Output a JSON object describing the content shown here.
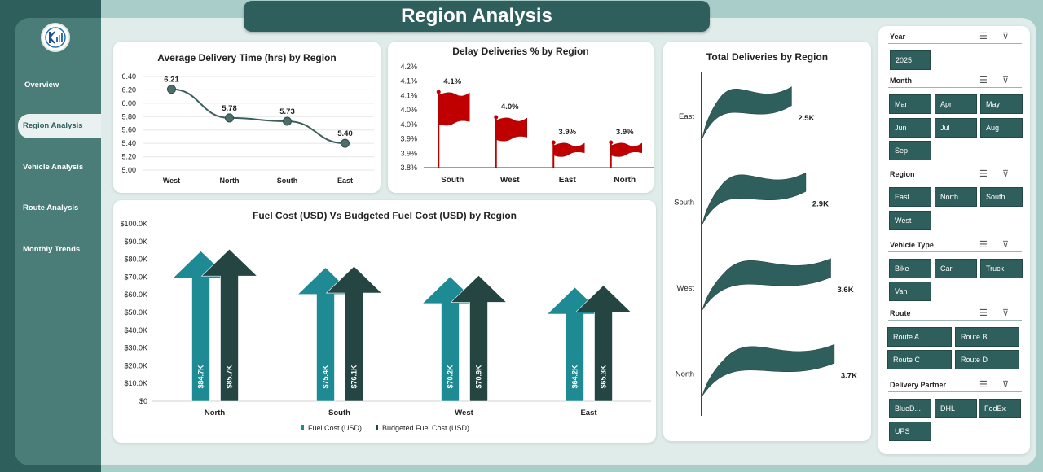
{
  "header": {
    "title": "Region Analysis"
  },
  "sidebar": {
    "items": [
      {
        "label": "Overview"
      },
      {
        "label": "Region Analysis"
      },
      {
        "label": "Vehicle Analysis"
      },
      {
        "label": "Route Analysis"
      },
      {
        "label": "Monthly Trends"
      }
    ],
    "active": "Region Analysis",
    "logo": "logo-icon"
  },
  "colors": {
    "teal": "#2f5f5c",
    "cyan": "#1e8a93",
    "red": "#c00000",
    "accent_bg": "#dfecea"
  },
  "charts": {
    "avg_delivery": {
      "title": "Average Delivery Time (hrs) by Region",
      "y_ticks": [
        "6.40",
        "6.20",
        "6.00",
        "5.80",
        "5.60",
        "5.40",
        "5.20",
        "5.00"
      ]
    },
    "delay": {
      "title": "Delay Deliveries % by Region",
      "y_ticks": [
        "4.2%",
        "4.1%",
        "4.1%",
        "4.0%",
        "4.0%",
        "3.9%",
        "3.9%",
        "3.8%"
      ]
    },
    "fuel": {
      "title": "Fuel Cost (USD) Vs Budgeted Fuel Cost (USD) by Region",
      "y_ticks": [
        "$100.0K",
        "$90.0K",
        "$80.0K",
        "$70.0K",
        "$60.0K",
        "$50.0K",
        "$40.0K",
        "$30.0K",
        "$20.0K",
        "$10.0K",
        "$0"
      ],
      "legend": [
        "Fuel Cost (USD)",
        "Budgeted Fuel Cost (USD)"
      ]
    },
    "total": {
      "title": "Total Deliveries by Region"
    }
  },
  "chart_data": [
    {
      "type": "line",
      "title": "Average Delivery Time (hrs) by Region",
      "categories": [
        "West",
        "North",
        "South",
        "East"
      ],
      "values": [
        6.21,
        5.78,
        5.73,
        5.4
      ],
      "labels": [
        "6.21",
        "5.78",
        "5.73",
        "5.40"
      ],
      "ylim": [
        5.0,
        6.4
      ]
    },
    {
      "type": "bar",
      "title": "Delay Deliveries % by Region",
      "categories": [
        "South",
        "West",
        "East",
        "North"
      ],
      "values": [
        4.1,
        4.0,
        3.9,
        3.9
      ],
      "labels": [
        "4.1%",
        "4.0%",
        "3.9%",
        "3.9%"
      ],
      "ylim": [
        3.8,
        4.2
      ]
    },
    {
      "type": "bar",
      "title": "Fuel Cost (USD) Vs Budgeted Fuel Cost (USD) by Region",
      "categories": [
        "North",
        "South",
        "West",
        "East"
      ],
      "series": [
        {
          "name": "Fuel Cost (USD)",
          "values": [
            84.7,
            75.4,
            70.2,
            64.2
          ],
          "labels": [
            "$84.7K",
            "$75.4K",
            "$70.2K",
            "$64.2K"
          ]
        },
        {
          "name": "Budgeted Fuel Cost (USD)",
          "values": [
            85.7,
            76.1,
            70.9,
            65.3
          ],
          "labels": [
            "$85.7K",
            "$76.1K",
            "$70.9K",
            "$65.3K"
          ]
        }
      ],
      "ylim": [
        0,
        100
      ]
    },
    {
      "type": "bar",
      "title": "Total Deliveries by Region",
      "categories": [
        "East",
        "South",
        "West",
        "North"
      ],
      "values": [
        2.5,
        2.9,
        3.6,
        3.7
      ],
      "labels": [
        "2.5K",
        "2.9K",
        "3.6K",
        "3.7K"
      ]
    }
  ],
  "slicers": {
    "year": {
      "label": "Year",
      "items": [
        "2025"
      ]
    },
    "month": {
      "label": "Month",
      "items": [
        "Mar",
        "Apr",
        "May",
        "Jun",
        "Jul",
        "Aug",
        "Sep"
      ]
    },
    "region": {
      "label": "Region",
      "items": [
        "East",
        "North",
        "South",
        "West"
      ]
    },
    "vehicle": {
      "label": "Vehicle Type",
      "items": [
        "Bike",
        "Car",
        "Truck",
        "Van"
      ]
    },
    "route": {
      "label": "Route",
      "items": [
        "Route A",
        "Route B",
        "Route C",
        "Route D"
      ]
    },
    "partner": {
      "label": "Delivery Partner",
      "items": [
        "BlueD...",
        "DHL",
        "FedEx",
        "UPS"
      ]
    },
    "icons": [
      "multi-select-icon",
      "clear-filter-icon"
    ]
  }
}
